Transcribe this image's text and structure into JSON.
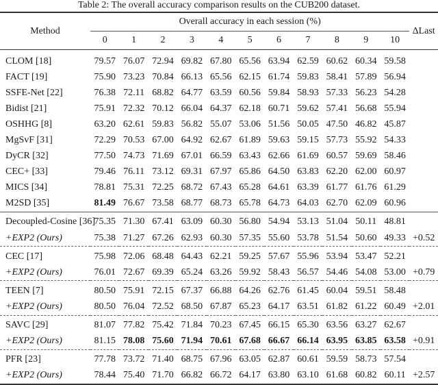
{
  "caption": "Table 2: The overall accuracy comparison results on the CUB200 dataset.",
  "header": {
    "method": "Method",
    "group": "Overall accuracy in each session (%)",
    "sessions": [
      "0",
      "1",
      "2",
      "3",
      "4",
      "5",
      "6",
      "7",
      "8",
      "9",
      "10"
    ],
    "delta": "ΔLast"
  },
  "rows": [
    {
      "method": "CLOM [18]",
      "values": [
        "79.57",
        "76.07",
        "72.94",
        "69.82",
        "67.80",
        "65.56",
        "63.94",
        "62.59",
        "60.62",
        "60.34",
        "59.58"
      ],
      "delta": ""
    },
    {
      "method": "FACT [19]",
      "values": [
        "75.90",
        "73.23",
        "70.84",
        "66.13",
        "65.56",
        "62.15",
        "61.74",
        "59.83",
        "58.41",
        "57.89",
        "56.94"
      ],
      "delta": ""
    },
    {
      "method": "SSFE-Net [22]",
      "values": [
        "76.38",
        "72.11",
        "68.82",
        "64.77",
        "63.59",
        "60.56",
        "59.84",
        "58.93",
        "57.33",
        "56.23",
        "54.28"
      ],
      "delta": ""
    },
    {
      "method": "Bidist [21]",
      "values": [
        "75.91",
        "72.32",
        "70.12",
        "66.04",
        "64.37",
        "62.18",
        "60.71",
        "59.62",
        "57.41",
        "56.68",
        "55.94"
      ],
      "delta": ""
    },
    {
      "method": "OSHHG [8]",
      "values": [
        "63.20",
        "62.61",
        "59.83",
        "56.82",
        "55.07",
        "53.06",
        "51.56",
        "50.05",
        "47.50",
        "46.82",
        "45.87"
      ],
      "delta": ""
    },
    {
      "method": "MgSvF [31]",
      "values": [
        "72.29",
        "70.53",
        "67.00",
        "64.92",
        "62.67",
        "61.89",
        "59.63",
        "59.15",
        "57.73",
        "55.92",
        "54.33"
      ],
      "delta": ""
    },
    {
      "method": "DyCR [32]",
      "values": [
        "77.50",
        "74.73",
        "71.69",
        "67.01",
        "66.59",
        "63.43",
        "62.66",
        "61.69",
        "60.57",
        "59.69",
        "58.46"
      ],
      "delta": ""
    },
    {
      "method": "CEC+ [33]",
      "values": [
        "79.46",
        "76.11",
        "73.12",
        "69.31",
        "67.97",
        "65.86",
        "64.50",
        "63.83",
        "62.20",
        "62.00",
        "60.97"
      ],
      "delta": ""
    },
    {
      "method": "MICS [34]",
      "values": [
        "78.81",
        "75.31",
        "72.25",
        "68.72",
        "67.43",
        "65.28",
        "64.61",
        "63.39",
        "61.77",
        "61.76",
        "61.29"
      ],
      "delta": ""
    },
    {
      "method": "M2SD [35]",
      "values": [
        "81.49",
        "76.67",
        "73.58",
        "68.77",
        "68.73",
        "65.78",
        "64.73",
        "64.03",
        "62.70",
        "62.09",
        "60.96"
      ],
      "delta": "",
      "bold": [
        0
      ],
      "sep": "solid"
    },
    {
      "method": "Decoupled-Cosine [36]",
      "values": [
        "75.35",
        "71.30",
        "67.41",
        "63.09",
        "60.30",
        "56.80",
        "54.94",
        "53.13",
        "51.04",
        "50.11",
        "48.81"
      ],
      "delta": ""
    },
    {
      "method": "+EXP2 (Ours)",
      "ours": true,
      "values": [
        "75.38",
        "71.27",
        "67.26",
        "62.93",
        "60.30",
        "57.35",
        "55.60",
        "53.78",
        "51.54",
        "50.60",
        "49.33"
      ],
      "delta": "+0.52",
      "sep": "dashed"
    },
    {
      "method": "CEC [17]",
      "values": [
        "75.98",
        "72.06",
        "68.48",
        "64.43",
        "62.21",
        "59.25",
        "57.67",
        "55.96",
        "53.94",
        "53.47",
        "52.21"
      ],
      "delta": ""
    },
    {
      "method": "+EXP2 (Ours)",
      "ours": true,
      "values": [
        "76.01",
        "72.67",
        "69.39",
        "65.24",
        "63.26",
        "59.92",
        "58.43",
        "56.57",
        "54.46",
        "54.08",
        "53.00"
      ],
      "delta": "+0.79",
      "sep": "dashed"
    },
    {
      "method": "TEEN [7]",
      "values": [
        "80.50",
        "75.91",
        "72.15",
        "67.37",
        "66.88",
        "64.26",
        "62.76",
        "61.45",
        "60.04",
        "59.51",
        "58.48"
      ],
      "delta": ""
    },
    {
      "method": "+EXP2 (Ours)",
      "ours": true,
      "values": [
        "80.50",
        "76.04",
        "72.52",
        "68.50",
        "67.87",
        "65.23",
        "64.17",
        "63.51",
        "61.82",
        "61.22",
        "60.49"
      ],
      "delta": "+2.01",
      "sep": "dashed"
    },
    {
      "method": "SAVC [29]",
      "values": [
        "81.07",
        "77.82",
        "75.42",
        "71.84",
        "70.23",
        "67.45",
        "66.15",
        "65.30",
        "63.56",
        "63.27",
        "62.67"
      ],
      "delta": ""
    },
    {
      "method": "+EXP2 (Ours)",
      "ours": true,
      "values": [
        "81.15",
        "78.08",
        "75.60",
        "71.94",
        "70.61",
        "67.68",
        "66.67",
        "66.14",
        "63.95",
        "63.85",
        "63.58"
      ],
      "delta": "+0.91",
      "bold": [
        1,
        2,
        3,
        4,
        5,
        6,
        7,
        8,
        9,
        10
      ],
      "sep": "dashed"
    },
    {
      "method": "PFR [23]",
      "values": [
        "77.78",
        "73.72",
        "71.40",
        "68.75",
        "67.96",
        "63.05",
        "62.87",
        "60.61",
        "59.59",
        "58.73",
        "57.54"
      ],
      "delta": ""
    },
    {
      "method": "+EXP2 (Ours)",
      "ours": true,
      "values": [
        "78.44",
        "75.40",
        "71.70",
        "66.82",
        "66.72",
        "64.17",
        "63.80",
        "63.10",
        "61.68",
        "60.82",
        "60.11"
      ],
      "delta": "+2.57",
      "sep": "last"
    }
  ]
}
